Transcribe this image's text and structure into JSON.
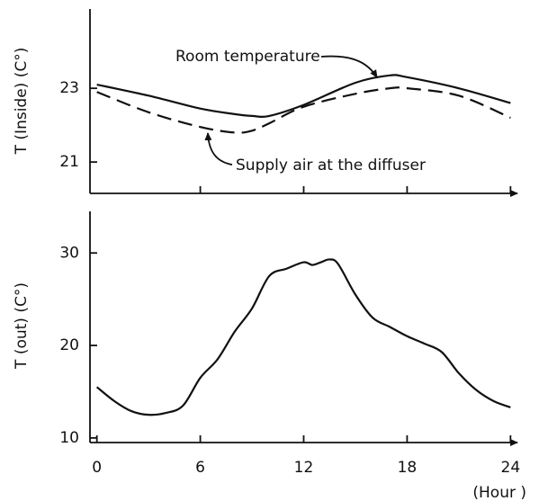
{
  "chart_data": [
    {
      "type": "line",
      "y_label": "T (Inside) (C°)",
      "x": [
        0,
        3,
        6,
        8,
        9,
        10,
        12,
        15,
        17,
        18,
        21,
        24
      ],
      "series": [
        {
          "name": "Room temperature",
          "color": "#111111",
          "style": "solid",
          "values": [
            23.1,
            22.8,
            22.45,
            22.3,
            22.25,
            22.25,
            22.55,
            23.15,
            23.35,
            23.3,
            23.0,
            22.6
          ]
        },
        {
          "name": "Supply air at the diffuser",
          "color": "#111111",
          "style": "dashed",
          "values": [
            22.9,
            22.35,
            21.95,
            21.8,
            21.85,
            22.05,
            22.5,
            22.85,
            23.0,
            23.0,
            22.8,
            22.2
          ]
        }
      ],
      "xlim": [
        -0.4,
        24.4
      ],
      "xticks": [
        6,
        12,
        18,
        24
      ],
      "show_xtick_labels": false,
      "ylim": [
        20.15,
        25.15
      ],
      "yticks": [
        21,
        23
      ]
    },
    {
      "type": "line",
      "y_label": "T (out) (C°)",
      "x_label": "(Hour )",
      "x": [
        0,
        1,
        2,
        3,
        4,
        5,
        6,
        7,
        8,
        9,
        10,
        11,
        12,
        12.5,
        13,
        13.5,
        14,
        15,
        16,
        17,
        18,
        19,
        20,
        21,
        22,
        23,
        24
      ],
      "series": [
        {
          "name": "T (out)",
          "color": "#111111",
          "style": "solid",
          "values": [
            15.5,
            14,
            12.9,
            12.5,
            12.7,
            13.5,
            16.5,
            18.5,
            21.5,
            24,
            27.5,
            28.3,
            29.0,
            28.7,
            29,
            29.3,
            28.8,
            25.5,
            23,
            22,
            21,
            20.2,
            19.3,
            17.0,
            15.2,
            14.0,
            13.3
          ]
        }
      ],
      "xlim": [
        -0.4,
        24.4
      ],
      "xticks": [
        0,
        6,
        12,
        18,
        24
      ],
      "show_xtick_labels": true,
      "ylim": [
        9.5,
        34.5
      ],
      "yticks": [
        10,
        20,
        30
      ]
    }
  ]
}
